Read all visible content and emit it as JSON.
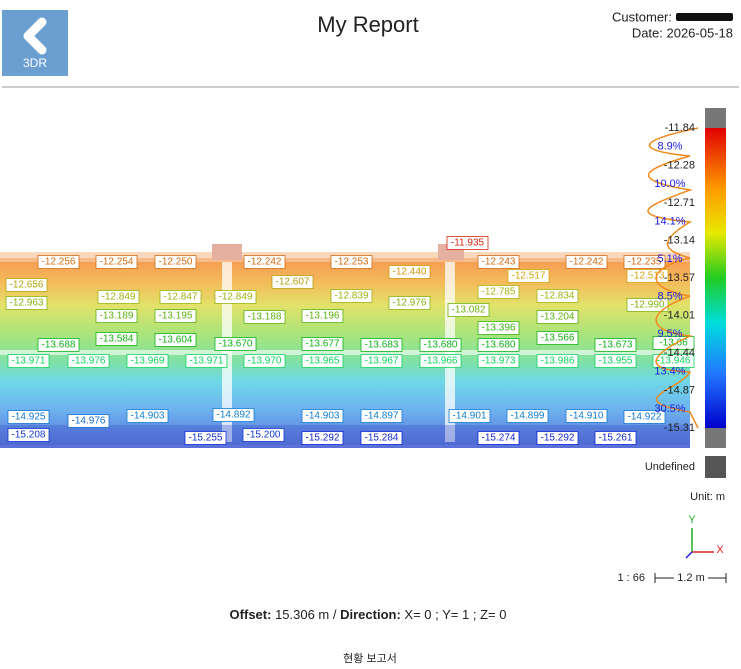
{
  "header": {
    "back_label": "3DR",
    "title": "My Report",
    "customer_label": "Customer:",
    "date": "Date: 2026-05-18"
  },
  "color_scale": {
    "ticks": [
      "-11.84",
      "-12.28",
      "-12.71",
      "-13.14",
      "-13.57",
      "-14.01",
      "-14.44",
      "-14.87",
      "-15.31"
    ],
    "percentages": [
      "8.9%",
      "10.0%",
      "14.1%",
      "5.1%",
      "8.5%",
      "9.5%",
      "13.4%",
      "30.5%"
    ],
    "undefined_label": "Undefined",
    "unit": "Unit: m"
  },
  "axes": {
    "y": "Y",
    "x": "X"
  },
  "scale": {
    "ratio": "1 : 66",
    "length": "1.2 m"
  },
  "point_labels": [
    "-11.935",
    "-12.256",
    "-12.254",
    "-12.250",
    "-12.242",
    "-12.253",
    "-12.243",
    "-12.242",
    "-12.235",
    "-12.440",
    "-12.607",
    "-12.517",
    "-12.513",
    "-12.656",
    "-12.849",
    "-12.847",
    "-12.849",
    "-12.839",
    "-12.785",
    "-12.834",
    "-12.963",
    "-12.976",
    "-12.990",
    "-13.082",
    "-13.189",
    "-13.195",
    "-13.188",
    "-13.196",
    "-13.204",
    "-13.396",
    "-13.688",
    "-13.584",
    "-13.604",
    "-13.670",
    "-13.677",
    "-13.683",
    "-13.680",
    "-13.680",
    "-13.566",
    "-13.673",
    "-13.66",
    "-13.971",
    "-13.976",
    "-13.969",
    "-13.971",
    "-13.970",
    "-13.965",
    "-13.967",
    "-13.966",
    "-13.973",
    "-13.986",
    "-13.955",
    "-13.946",
    "-14.925",
    "-14.976",
    "-14.903",
    "-14.892",
    "-14.903",
    "-14.897",
    "-14.901",
    "-14.899",
    "-14.910",
    "-14.922",
    "-15.208",
    "-15.255",
    "-15.200",
    "-15.292",
    "-15.284",
    "-15.274",
    "-15.292",
    "-15.261"
  ],
  "offset": {
    "offset_label": "Offset:",
    "offset_value": "15.306 m /",
    "direction_label": "Direction:",
    "direction_value": "X= 0 ; Y= 1 ; Z= 0"
  },
  "footer": "현황 보고서"
}
